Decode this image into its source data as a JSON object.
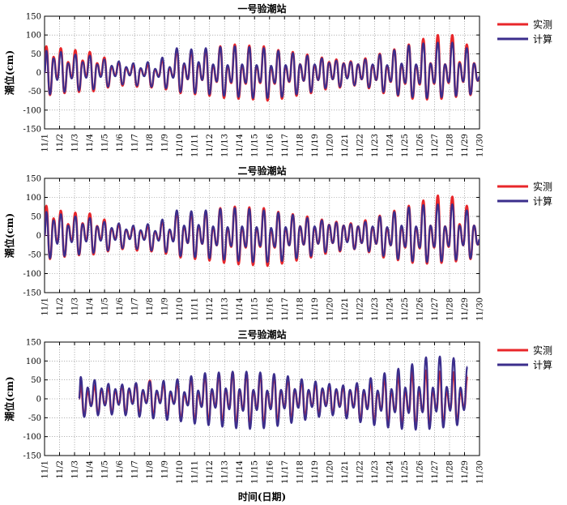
{
  "chart_data": [
    {
      "type": "line",
      "title": "一号验潮站",
      "ylabel": "潮位(cm)",
      "xlabel": "",
      "ylim": [
        -150,
        150
      ],
      "yticks": [
        -150,
        -100,
        -50,
        0,
        50,
        100,
        150
      ],
      "x_categories": [
        "11/1",
        "11/2",
        "11/3",
        "11/4",
        "11/5",
        "11/6",
        "11/7",
        "11/8",
        "11/9",
        "11/10",
        "11/11",
        "11/12",
        "11/13",
        "11/14",
        "11/15",
        "11/16",
        "11/17",
        "11/18",
        "11/19",
        "11/20",
        "11/21",
        "11/22",
        "11/23",
        "11/24",
        "11/25",
        "11/26",
        "11/27",
        "11/28",
        "11/29",
        "11/30"
      ],
      "x_start_day": 0,
      "legend": {
        "position": "right",
        "entries": [
          {
            "name": "实测",
            "color": "#e8262a"
          },
          {
            "name": "计算",
            "color": "#3b2e8c"
          }
        ]
      },
      "series": [
        {
          "name": "实测",
          "color": "#e8262a",
          "highs": [
            70,
            42,
            65,
            28,
            60,
            32,
            55,
            25,
            40,
            15,
            28,
            12,
            20,
            10,
            22,
            8,
            35,
            12,
            60,
            22,
            58,
            25,
            62,
            20,
            70,
            18,
            75,
            20,
            72,
            18,
            70,
            15,
            60,
            18,
            55,
            22,
            48,
            20,
            40,
            28,
            35,
            25,
            30,
            22,
            38,
            20,
            50,
            18,
            62,
            22,
            75,
            20,
            90,
            25,
            100,
            22,
            100,
            28,
            75,
            25
          ],
          "lows": [
            -60,
            -18,
            -55,
            -15,
            -52,
            -12,
            -50,
            -10,
            -40,
            -8,
            -35,
            -5,
            -38,
            -8,
            -40,
            -10,
            -45,
            -12,
            -55,
            -18,
            -58,
            -20,
            -62,
            -25,
            -68,
            -28,
            -70,
            -30,
            -72,
            -28,
            -75,
            -30,
            -70,
            -25,
            -62,
            -22,
            -55,
            -20,
            -45,
            -18,
            -40,
            -15,
            -35,
            -18,
            -42,
            -20,
            -55,
            -25,
            -62,
            -30,
            -70,
            -32,
            -72,
            -30,
            -70,
            -28,
            -65,
            -25,
            -60,
            -22
          ]
        },
        {
          "name": "计算",
          "color": "#3b2e8c",
          "highs": [
            58,
            38,
            55,
            25,
            48,
            28,
            45,
            22,
            35,
            18,
            30,
            15,
            25,
            12,
            28,
            10,
            40,
            15,
            65,
            25,
            62,
            28,
            65,
            22,
            68,
            20,
            70,
            22,
            68,
            20,
            65,
            18,
            58,
            20,
            52,
            22,
            45,
            22,
            38,
            26,
            32,
            24,
            28,
            22,
            35,
            22,
            48,
            20,
            60,
            24,
            72,
            22,
            78,
            24,
            80,
            22,
            80,
            25,
            65,
            24
          ],
          "lows": [
            -58,
            -20,
            -52,
            -16,
            -48,
            -14,
            -45,
            -12,
            -38,
            -10,
            -32,
            -8,
            -35,
            -10,
            -38,
            -12,
            -42,
            -14,
            -52,
            -18,
            -55,
            -20,
            -58,
            -24,
            -62,
            -26,
            -65,
            -28,
            -68,
            -26,
            -68,
            -28,
            -65,
            -24,
            -58,
            -22,
            -52,
            -20,
            -42,
            -18,
            -38,
            -16,
            -34,
            -18,
            -40,
            -20,
            -52,
            -24,
            -60,
            -28,
            -66,
            -30,
            -68,
            -28,
            -66,
            -26,
            -62,
            -24,
            -58,
            -22
          ]
        }
      ]
    },
    {
      "type": "line",
      "title": "二号验潮站",
      "ylabel": "潮位(cm)",
      "xlabel": "",
      "ylim": [
        -150,
        150
      ],
      "yticks": [
        -150,
        -100,
        -50,
        0,
        50,
        100,
        150
      ],
      "x_categories": [
        "11/1",
        "11/2",
        "11/3",
        "11/4",
        "11/5",
        "11/6",
        "11/7",
        "11/8",
        "11/9",
        "11/10",
        "11/11",
        "11/12",
        "11/13",
        "11/14",
        "11/15",
        "11/16",
        "11/17",
        "11/18",
        "11/19",
        "11/20",
        "11/21",
        "11/22",
        "11/23",
        "11/24",
        "11/25",
        "11/26",
        "11/27",
        "11/28",
        "11/29",
        "11/30"
      ],
      "x_start_day": 0,
      "legend": {
        "position": "right",
        "entries": [
          {
            "name": "实测",
            "color": "#e8262a"
          },
          {
            "name": "计算",
            "color": "#3b2e8c"
          }
        ]
      },
      "series": [
        {
          "name": "实测",
          "color": "#e8262a",
          "highs": [
            78,
            45,
            65,
            30,
            60,
            32,
            58,
            25,
            42,
            18,
            30,
            15,
            22,
            12,
            25,
            10,
            38,
            14,
            62,
            24,
            60,
            26,
            64,
            22,
            72,
            20,
            76,
            22,
            74,
            20,
            72,
            16,
            62,
            20,
            56,
            24,
            50,
            22,
            42,
            28,
            36,
            26,
            32,
            24,
            40,
            22,
            52,
            20,
            65,
            24,
            78,
            22,
            92,
            26,
            105,
            24,
            102,
            30,
            78,
            26
          ],
          "lows": [
            -62,
            -20,
            -56,
            -16,
            -52,
            -14,
            -50,
            -12,
            -42,
            -10,
            -36,
            -6,
            -40,
            -10,
            -42,
            -12,
            -48,
            -14,
            -58,
            -20,
            -62,
            -22,
            -66,
            -26,
            -72,
            -30,
            -76,
            -32,
            -78,
            -30,
            -80,
            -32,
            -74,
            -26,
            -66,
            -24,
            -58,
            -22,
            -48,
            -20,
            -42,
            -16,
            -36,
            -20,
            -44,
            -22,
            -58,
            -26,
            -65,
            -32,
            -72,
            -34,
            -74,
            -32,
            -72,
            -30,
            -68,
            -26,
            -62,
            -24
          ]
        },
        {
          "name": "计算",
          "color": "#3b2e8c",
          "highs": [
            62,
            40,
            56,
            26,
            50,
            30,
            46,
            24,
            36,
            20,
            32,
            16,
            26,
            14,
            30,
            12,
            42,
            16,
            66,
            26,
            64,
            28,
            66,
            24,
            70,
            22,
            72,
            24,
            70,
            22,
            66,
            20,
            60,
            22,
            54,
            24,
            46,
            24,
            40,
            28,
            34,
            26,
            30,
            24,
            36,
            24,
            50,
            22,
            62,
            26,
            74,
            24,
            80,
            26,
            82,
            24,
            82,
            26,
            66,
            26
          ],
          "lows": [
            -60,
            -22,
            -54,
            -18,
            -50,
            -16,
            -46,
            -14,
            -40,
            -12,
            -34,
            -10,
            -36,
            -12,
            -40,
            -14,
            -44,
            -16,
            -54,
            -20,
            -57,
            -22,
            -60,
            -26,
            -64,
            -28,
            -67,
            -30,
            -70,
            -28,
            -70,
            -30,
            -67,
            -26,
            -60,
            -24,
            -54,
            -22,
            -44,
            -20,
            -40,
            -18,
            -36,
            -20,
            -42,
            -22,
            -54,
            -26,
            -62,
            -30,
            -68,
            -32,
            -70,
            -30,
            -68,
            -28,
            -64,
            -26,
            -60,
            -24
          ]
        }
      ]
    },
    {
      "type": "line",
      "title": "三号验潮站",
      "ylabel": "潮位(cm)",
      "xlabel": "时间(日期)",
      "ylim": [
        -150,
        150
      ],
      "yticks": [
        -150,
        -100,
        -50,
        0,
        50,
        100,
        150
      ],
      "x_categories": [
        "11/1",
        "11/2",
        "11/3",
        "11/4",
        "11/5",
        "11/6",
        "11/7",
        "11/8",
        "11/9",
        "11/10",
        "11/11",
        "11/12",
        "11/13",
        "11/14",
        "11/15",
        "11/16",
        "11/17",
        "11/18",
        "11/19",
        "11/20",
        "11/21",
        "11/22",
        "11/23",
        "11/24",
        "11/25",
        "11/26",
        "11/27",
        "11/28",
        "11/29",
        "11/30"
      ],
      "x_start_day": 2.3,
      "legend": {
        "position": "right",
        "entries": [
          {
            "name": "实测",
            "color": "#e8262a"
          },
          {
            "name": "计算",
            "color": "#3b2e8c"
          }
        ]
      },
      "series": [
        {
          "name": "实测",
          "color": "#e8262a",
          "highs": [
            38,
            20,
            35,
            25,
            30,
            22,
            35,
            25,
            40,
            20,
            48,
            18,
            40,
            15,
            42,
            12,
            55,
            15,
            62,
            22,
            66,
            25,
            70,
            24,
            68,
            22,
            66,
            20,
            60,
            22,
            54,
            24,
            46,
            22,
            40,
            25,
            35,
            24,
            32,
            22,
            36,
            20,
            45,
            18,
            55,
            20,
            62,
            22,
            70,
            24,
            75,
            22,
            72,
            20,
            70,
            20,
            60,
            18
          ],
          "lows": [
            -45,
            -18,
            -40,
            -16,
            -38,
            -14,
            -40,
            -12,
            -42,
            -10,
            -45,
            -8,
            -50,
            -12,
            -55,
            -16,
            -60,
            -20,
            -62,
            -22,
            -65,
            -26,
            -68,
            -30,
            -70,
            -28,
            -68,
            -26,
            -62,
            -24,
            -56,
            -22,
            -48,
            -20,
            -42,
            -18,
            -40,
            -20,
            -48,
            -22,
            -58,
            -26,
            -62,
            -30,
            -66,
            -34,
            -70,
            -36,
            -72,
            -34,
            -70,
            -30,
            -66,
            -28,
            -62,
            -26
          ]
        },
        {
          "name": "计算",
          "color": "#3b2e8c",
          "highs": [
            58,
            30,
            50,
            28,
            40,
            26,
            38,
            28,
            42,
            24,
            46,
            22,
            48,
            20,
            52,
            18,
            60,
            22,
            68,
            26,
            70,
            28,
            72,
            26,
            72,
            24,
            70,
            22,
            66,
            24,
            60,
            26,
            52,
            24,
            46,
            28,
            40,
            26,
            36,
            24,
            42,
            24,
            55,
            22,
            68,
            26,
            80,
            30,
            92,
            32,
            110,
            30,
            112,
            32,
            108,
            30,
            85,
            28
          ],
          "lows": [
            -48,
            -20,
            -44,
            -18,
            -42,
            -16,
            -44,
            -14,
            -48,
            -12,
            -52,
            -12,
            -56,
            -14,
            -60,
            -18,
            -66,
            -22,
            -70,
            -24,
            -74,
            -28,
            -78,
            -32,
            -80,
            -30,
            -78,
            -28,
            -72,
            -26,
            -64,
            -24,
            -56,
            -22,
            -48,
            -20,
            -44,
            -22,
            -52,
            -24,
            -62,
            -28,
            -70,
            -32,
            -76,
            -36,
            -80,
            -38,
            -82,
            -36,
            -80,
            -34,
            -76,
            -32,
            -70,
            -30
          ]
        }
      ]
    }
  ]
}
